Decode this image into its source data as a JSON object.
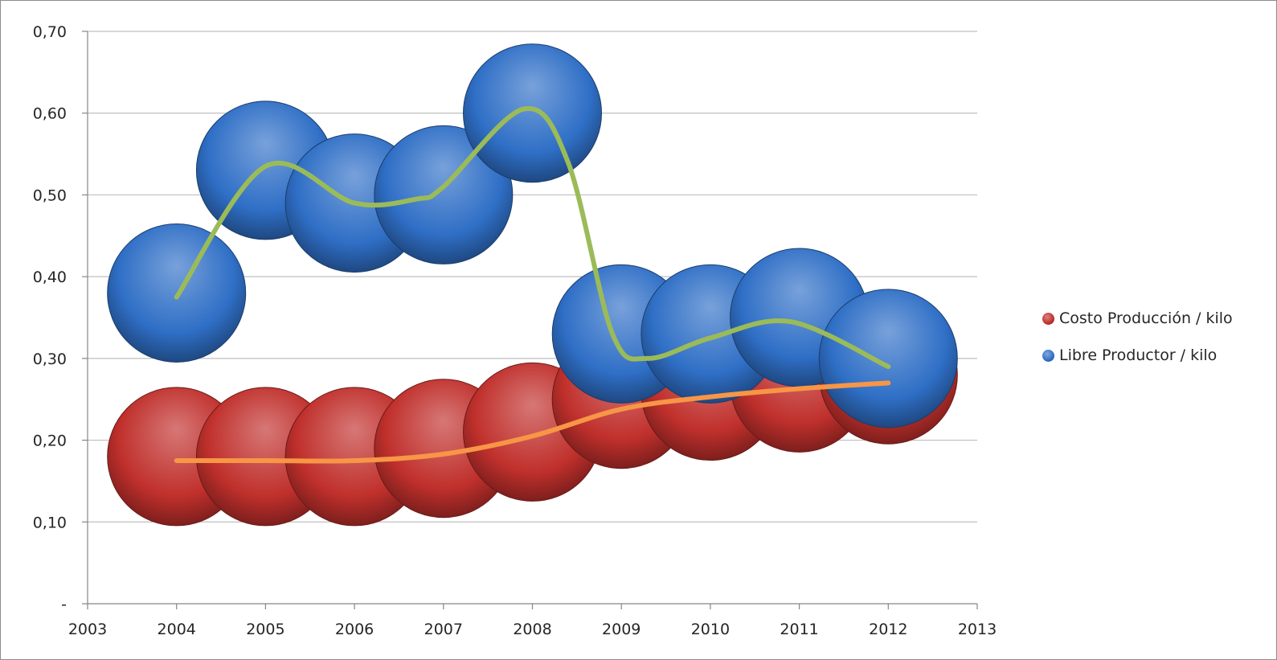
{
  "chart_data": {
    "type": "bubble",
    "title": "",
    "xlabel": "",
    "ylabel": "",
    "x_axis": {
      "min": 2003,
      "max": 2013,
      "step": 1,
      "tick_labels": [
        "2003",
        "2004",
        "2005",
        "2006",
        "2007",
        "2008",
        "2009",
        "2010",
        "2011",
        "2012",
        "2013"
      ]
    },
    "y_axis": {
      "min": 0,
      "max": 0.7,
      "step": 0.1,
      "tick_labels": [
        "-",
        "0,10",
        "0,20",
        "0,30",
        "0,40",
        "0,50",
        "0,60",
        "0,70"
      ]
    },
    "grid": "horizontal",
    "legend_position": "right",
    "series": [
      {
        "name": "Costo Producción / kilo",
        "color": "#c0302c",
        "trend_color": "#f79646",
        "x": [
          2004,
          2005,
          2006,
          2007,
          2008,
          2009,
          2010,
          2011,
          2012
        ],
        "y": [
          0.18,
          0.18,
          0.18,
          0.19,
          0.21,
          0.25,
          0.26,
          0.27,
          0.28
        ]
      },
      {
        "name": "Libre Productor / kilo",
        "color": "#2f6fc6",
        "trend_color": "#9bbb59",
        "x": [
          2004,
          2005,
          2006,
          2007,
          2008,
          2009,
          2010,
          2011,
          2012
        ],
        "y": [
          0.38,
          0.53,
          0.49,
          0.5,
          0.6,
          0.33,
          0.33,
          0.35,
          0.3
        ]
      }
    ],
    "trendlines": [
      {
        "series": "Costo Producción / kilo",
        "x": [
          2004,
          2005,
          2006,
          2007,
          2008,
          2009,
          2010,
          2011,
          2012
        ],
        "y": [
          0.175,
          0.175,
          0.175,
          0.183,
          0.205,
          0.238,
          0.253,
          0.263,
          0.27
        ]
      },
      {
        "series": "Libre Productor / kilo",
        "x": [
          2004,
          2005,
          2006,
          2006.7,
          2007,
          2007.9,
          2008.4,
          2008.9,
          2009.3,
          2010,
          2010.9,
          2012
        ],
        "y": [
          0.375,
          0.535,
          0.49,
          0.495,
          0.51,
          0.605,
          0.54,
          0.33,
          0.3,
          0.325,
          0.345,
          0.29
        ]
      }
    ]
  }
}
